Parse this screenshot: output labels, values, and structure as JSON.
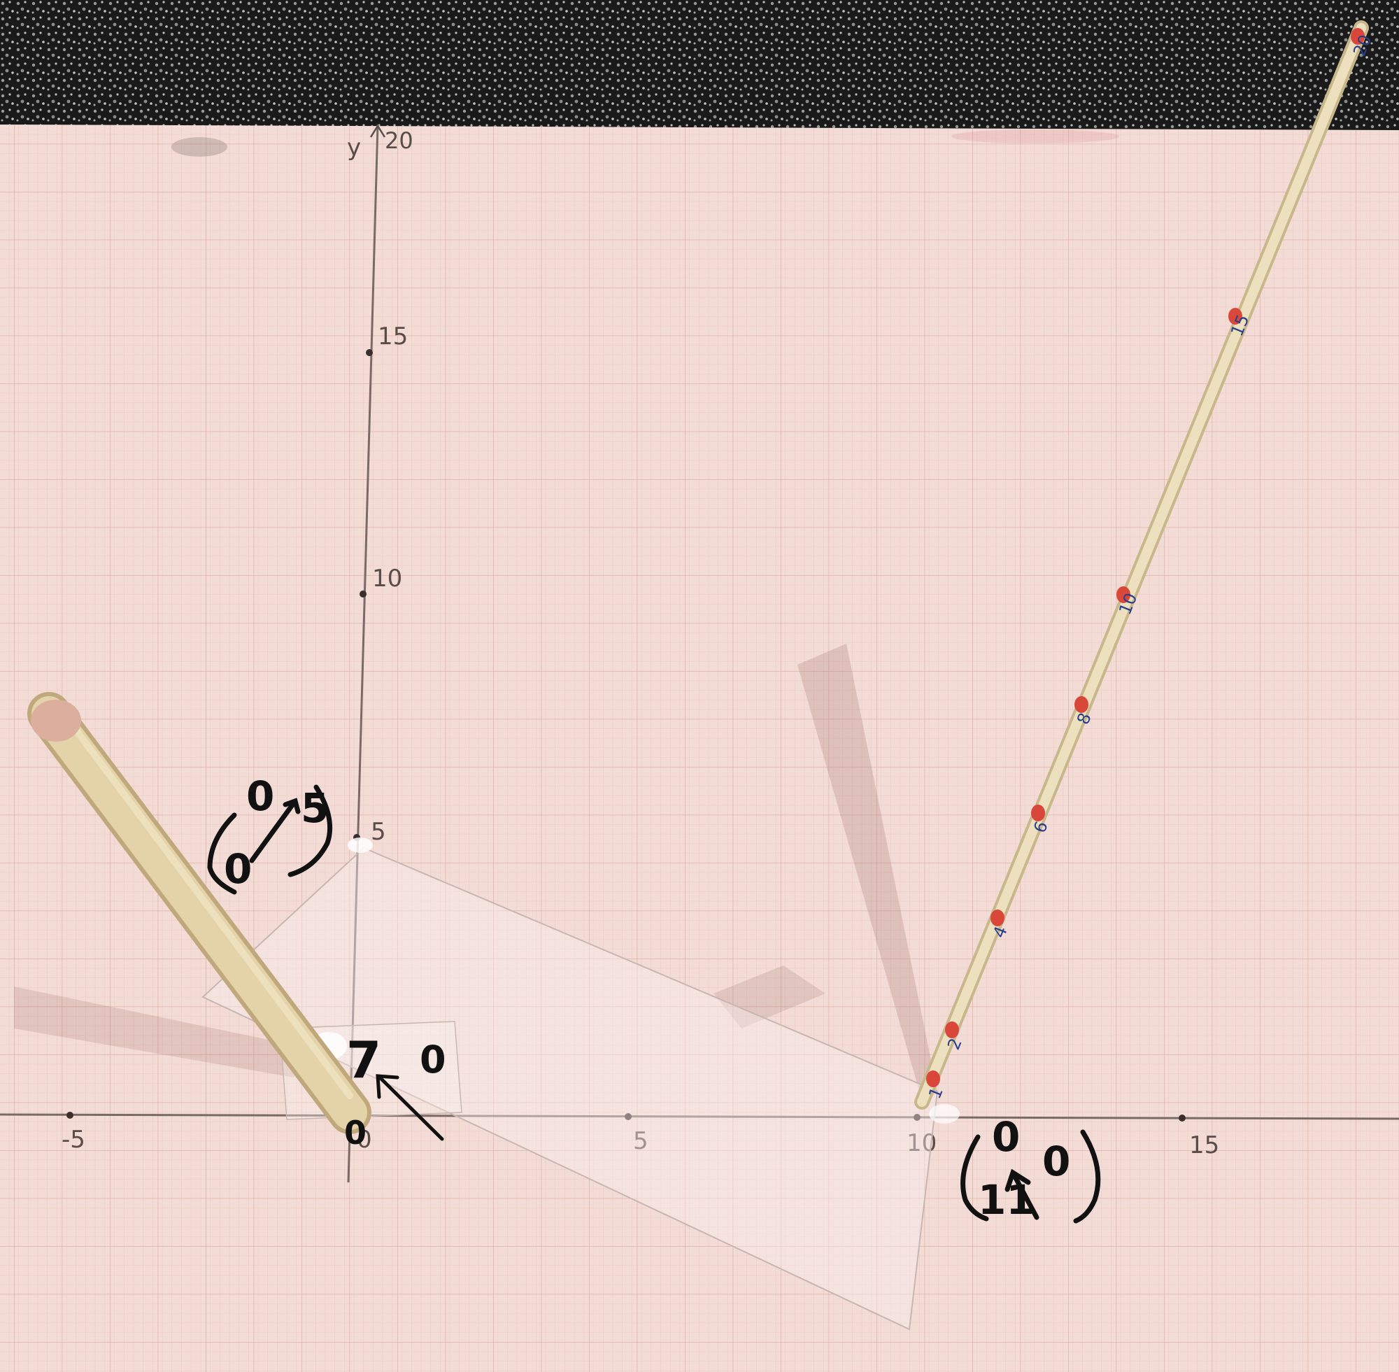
{
  "axis": {
    "y_label": "y",
    "y_top_tick": "20",
    "y_ticks": [
      "15",
      "10",
      "5"
    ],
    "x_ticks": [
      "-5",
      "0",
      "5",
      "10",
      "15"
    ]
  },
  "annotations": {
    "top_left_vector": {
      "top": "0",
      "bottom_left": "0",
      "bottom_right": "5"
    },
    "origin_note": {
      "digit": "7",
      "zero": "0"
    },
    "right_vector": {
      "top": "0",
      "bottom_left": "11",
      "bottom_right": "0"
    }
  },
  "stick_right": {
    "labels": [
      "1",
      "2",
      "4",
      "6",
      "8",
      "10",
      "15",
      "20"
    ]
  },
  "colors": {
    "carpet": "#1a1a1a",
    "paper": "#f3dcd6",
    "grid_minor": "#e6bfb6",
    "grid_major": "#d9a89c",
    "axis": "#7a6a66",
    "stick": "#e2d5b2",
    "stick_marker": "#d9463a",
    "ink": "#111111",
    "blue_ink": "#2a3f8a"
  }
}
